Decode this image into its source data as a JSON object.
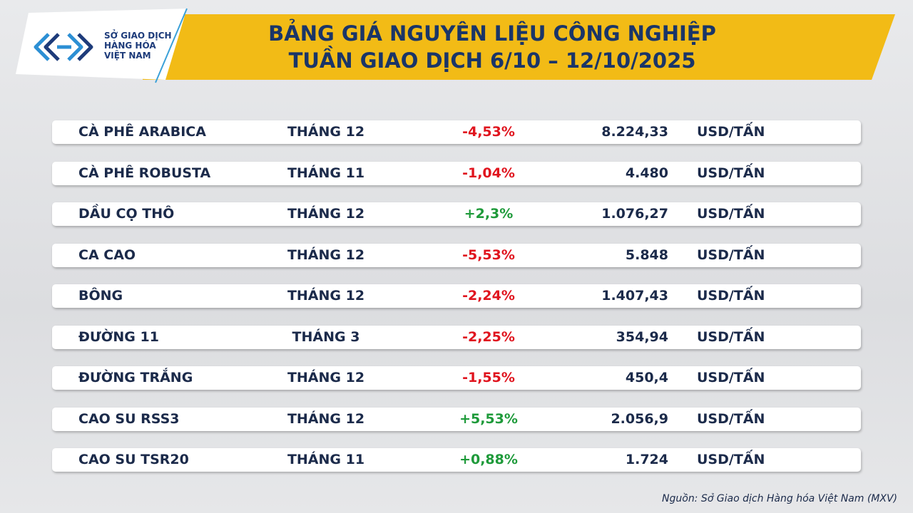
{
  "logo": {
    "lines": [
      "SỞ GIAO DỊCH",
      "HÀNG HÓA",
      "VIỆT NAM"
    ]
  },
  "header": {
    "title_lines": [
      "BẢNG GIÁ NGUYÊN LIỆU CÔNG NGHIỆP",
      "TUẦN GIAO DỊCH 6/10 – 12/10/2025"
    ]
  },
  "table": {
    "rows": [
      [
        "CÀ PHÊ ARABICA",
        "THÁNG 12",
        "-4,53%",
        "8.224,33",
        "USD/TẤN"
      ],
      [
        "CÀ PHÊ ROBUSTA",
        "THÁNG 11",
        "-1,04%",
        "4.480",
        "USD/TẤN"
      ],
      [
        "DẦU CỌ THÔ",
        "THÁNG 12",
        "+2,3%",
        "1.076,27",
        "USD/TẤN"
      ],
      [
        "CA CAO",
        "THÁNG 12",
        "-5,53%",
        "5.848",
        "USD/TẤN"
      ],
      [
        "BÔNG",
        "THÁNG 12",
        "-2,24%",
        "1.407,43",
        "USD/TẤN"
      ],
      [
        "ĐƯỜNG 11",
        "THÁNG 3",
        "-2,25%",
        "354,94",
        "USD/TẤN"
      ],
      [
        "ĐƯỜNG TRẮNG",
        "THÁNG 12",
        "-1,55%",
        "450,4",
        "USD/TẤN"
      ],
      [
        "CAO SU RSS3",
        "THÁNG 12",
        "+5,53%",
        "2.056,9",
        "USD/TẤN"
      ],
      [
        "CAO SU TSR20",
        "THÁNG 11",
        "+0,88%",
        "1.724",
        "USD/TẤN"
      ]
    ]
  },
  "footer": {
    "source": "Nguồn: Sở Giao dịch Hàng hóa Việt Nam (MXV)"
  }
}
